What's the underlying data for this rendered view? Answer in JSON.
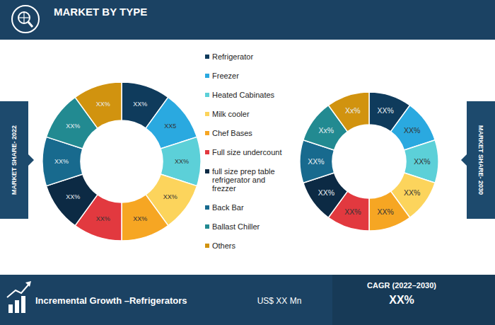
{
  "header": {
    "title": "MARKET BY TYPE"
  },
  "chart_data": [
    {
      "type": "donut",
      "title": "MARKET SHARE- 2022",
      "categories": [
        "Refrigerator",
        "Freezer",
        "Heated Cabinates",
        "Milk cooler",
        "Chef Bases",
        "Full size undercount",
        "full size prep table refrigerator and frezzer",
        "Back Bar",
        "Ballast Chiller",
        "Others"
      ],
      "values": [
        10,
        10,
        10,
        10,
        10,
        10,
        10,
        10,
        10,
        10
      ],
      "value_labels": [
        "XX%",
        "XX5",
        "XX%",
        "XX%",
        "XX%",
        "XX%",
        "XX%",
        "XX%",
        "XX%",
        "XX%"
      ],
      "colors": [
        "#0f3b5c",
        "#2aa9e0",
        "#5cd0d8",
        "#fcd45c",
        "#f6a623",
        "#e2393f",
        "#0c2a44",
        "#186a8e",
        "#228a91",
        "#d1930f"
      ],
      "data_labels": true,
      "legend": "right"
    },
    {
      "type": "donut",
      "title": "MARKET SHARE- 2030",
      "categories": [
        "Refrigerator",
        "Freezer",
        "Heated Cabinates",
        "Milk cooler",
        "Chef Bases",
        "Full size undercount",
        "full size prep table refrigerator and frezzer",
        "Back Bar",
        "Ballast Chiller",
        "Others"
      ],
      "values": [
        10,
        10,
        10,
        10,
        10,
        10,
        10,
        10,
        10,
        10
      ],
      "value_labels": [
        "XX%",
        "XX%",
        "XX%",
        "XX%",
        "XX%",
        "XX%",
        "XX%",
        "XX%",
        "Xx%",
        "Xx%"
      ],
      "colors": [
        "#0f3b5c",
        "#2aa9e0",
        "#5cd0d8",
        "#fcd45c",
        "#f6a623",
        "#e2393f",
        "#0c2a44",
        "#186a8e",
        "#228a91",
        "#d1930f"
      ],
      "data_labels": true
    }
  ],
  "footer": {
    "label": "Incremental Growth –Refrigerators",
    "value": "US$ XX Mn",
    "cagr_label": "CAGR (2022–2030)",
    "cagr_value": "XX%"
  }
}
